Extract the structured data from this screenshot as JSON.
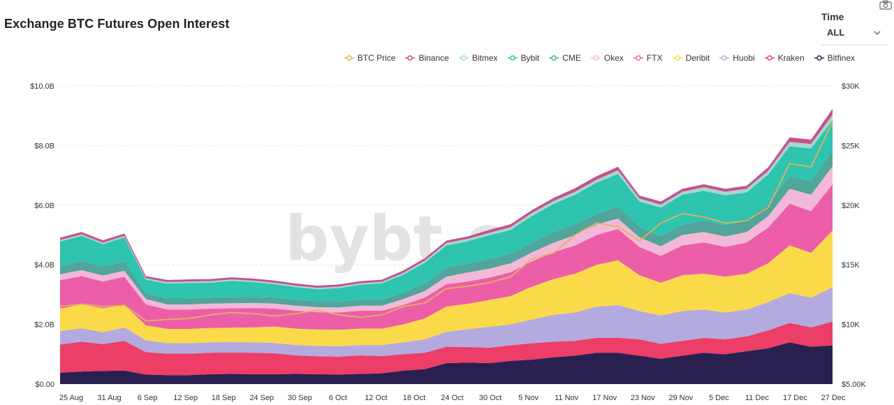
{
  "header": {
    "title": "Exchange BTC Futures Open Interest"
  },
  "time_selector": {
    "label": "Time",
    "value": "ALL"
  },
  "icons": {
    "dropdown": "chevron-down-icon",
    "screenshot": "camera-icon"
  },
  "watermark": "bybt.com",
  "chart_data": {
    "type": "area",
    "stacked": true,
    "title": "Exchange BTC Futures Open Interest",
    "x_tick_labels": [
      "25 Aug",
      "31 Aug",
      "6 Sep",
      "12 Sep",
      "18 Sep",
      "24 Sep",
      "30 Sep",
      "6 Oct",
      "12 Oct",
      "18 Oct",
      "24 Oct",
      "30 Oct",
      "5 Nov",
      "11 Nov",
      "17 Nov",
      "23 Nov",
      "29 Nov",
      "5 Dec",
      "11 Dec",
      "17 Dec",
      "27 Dec"
    ],
    "y_left": {
      "ticks": [
        "$0.00",
        "$2.0B",
        "$4.0B",
        "$6.0B",
        "$8.0B",
        "$10.0B"
      ],
      "range": [
        0,
        10
      ]
    },
    "y_right": {
      "ticks": [
        "$5.00K",
        "$10K",
        "$15K",
        "$20K",
        "$25K",
        "$30K"
      ],
      "range": [
        5000,
        30000
      ]
    },
    "grid": "horizontal-dashed",
    "legend_position": "top-right",
    "legend": [
      "BTC Price",
      "Binance",
      "Bitmex",
      "Bybit",
      "CME",
      "Okex",
      "FTX",
      "Deribit",
      "Huobi",
      "Kraken",
      "Bitfinex"
    ],
    "series": [
      {
        "name": "Bitfinex",
        "color": "#2a2050",
        "values": [
          0.38,
          0.42,
          0.44,
          0.45,
          0.32,
          0.3,
          0.3,
          0.33,
          0.34,
          0.33,
          0.33,
          0.34,
          0.33,
          0.32,
          0.34,
          0.36,
          0.45,
          0.5,
          0.7,
          0.72,
          0.7,
          0.78,
          0.82,
          0.9,
          0.95,
          1.05,
          1.05,
          0.95,
          0.85,
          0.95,
          1.05,
          1.0,
          1.1,
          1.2,
          1.4,
          1.25,
          1.3
        ]
      },
      {
        "name": "Kraken",
        "color": "#ec3e66",
        "values": [
          0.95,
          1.0,
          0.9,
          1.0,
          0.75,
          0.72,
          0.72,
          0.72,
          0.72,
          0.72,
          0.7,
          0.62,
          0.6,
          0.6,
          0.62,
          0.58,
          0.55,
          0.55,
          0.55,
          0.52,
          0.52,
          0.52,
          0.55,
          0.52,
          0.5,
          0.5,
          0.5,
          0.55,
          0.5,
          0.5,
          0.5,
          0.5,
          0.5,
          0.6,
          0.65,
          0.65,
          0.8
        ]
      },
      {
        "name": "Huobi",
        "color": "#b3aadf",
        "values": [
          0.45,
          0.45,
          0.4,
          0.45,
          0.4,
          0.35,
          0.35,
          0.35,
          0.35,
          0.35,
          0.35,
          0.35,
          0.35,
          0.35,
          0.35,
          0.37,
          0.4,
          0.45,
          0.5,
          0.6,
          0.7,
          0.7,
          0.8,
          0.9,
          0.95,
          1.05,
          1.1,
          0.95,
          0.95,
          1.0,
          0.95,
          0.9,
          0.9,
          0.95,
          1.0,
          1.0,
          1.15
        ]
      },
      {
        "name": "Deribit",
        "color": "#fbda4a",
        "values": [
          0.75,
          0.8,
          0.8,
          0.75,
          0.5,
          0.48,
          0.48,
          0.48,
          0.48,
          0.5,
          0.55,
          0.55,
          0.55,
          0.55,
          0.55,
          0.55,
          0.6,
          0.7,
          0.85,
          0.85,
          0.9,
          0.95,
          1.1,
          1.2,
          1.3,
          1.4,
          1.5,
          1.2,
          1.1,
          1.2,
          1.2,
          1.2,
          1.2,
          1.3,
          1.6,
          1.5,
          1.9
        ]
      },
      {
        "name": "FTX",
        "color": "#ec5fa8",
        "values": [
          0.95,
          0.95,
          0.9,
          0.95,
          0.7,
          0.65,
          0.65,
          0.65,
          0.65,
          0.65,
          0.6,
          0.6,
          0.58,
          0.58,
          0.6,
          0.6,
          0.65,
          0.7,
          0.75,
          0.75,
          0.75,
          0.8,
          0.85,
          0.9,
          0.95,
          1.0,
          1.05,
          0.95,
          0.9,
          1.0,
          1.05,
          1.0,
          1.05,
          1.2,
          1.4,
          1.4,
          1.55
        ]
      },
      {
        "name": "Okex",
        "color": "#f3b8d8",
        "values": [
          0.2,
          0.2,
          0.2,
          0.2,
          0.18,
          0.17,
          0.17,
          0.17,
          0.17,
          0.17,
          0.17,
          0.17,
          0.17,
          0.17,
          0.17,
          0.17,
          0.2,
          0.22,
          0.25,
          0.3,
          0.3,
          0.3,
          0.3,
          0.32,
          0.35,
          0.35,
          0.35,
          0.32,
          0.32,
          0.35,
          0.35,
          0.35,
          0.35,
          0.38,
          0.5,
          0.55,
          0.6
        ]
      },
      {
        "name": "CME",
        "color": "#51a59a",
        "values": [
          0.28,
          0.3,
          0.3,
          0.3,
          0.2,
          0.2,
          0.2,
          0.2,
          0.2,
          0.2,
          0.2,
          0.2,
          0.2,
          0.2,
          0.2,
          0.2,
          0.22,
          0.25,
          0.3,
          0.3,
          0.32,
          0.32,
          0.32,
          0.35,
          0.35,
          0.35,
          0.4,
          0.35,
          0.35,
          0.35,
          0.38,
          0.38,
          0.38,
          0.4,
          0.42,
          0.45,
          0.5
        ]
      },
      {
        "name": "Bybit",
        "color": "#2ec4ae",
        "values": [
          0.82,
          0.85,
          0.75,
          0.82,
          0.45,
          0.5,
          0.52,
          0.5,
          0.55,
          0.5,
          0.45,
          0.42,
          0.4,
          0.45,
          0.5,
          0.55,
          0.6,
          0.7,
          0.75,
          0.75,
          0.8,
          0.8,
          0.9,
          0.95,
          1.0,
          1.05,
          1.1,
          0.85,
          0.95,
          1.0,
          1.0,
          1.0,
          0.95,
          1.0,
          1.0,
          1.1,
          1.05
        ]
      },
      {
        "name": "Bitmex",
        "color": "#a4d7cf",
        "values": [
          0.05,
          0.05,
          0.05,
          0.05,
          0.05,
          0.05,
          0.05,
          0.05,
          0.05,
          0.05,
          0.05,
          0.05,
          0.05,
          0.05,
          0.05,
          0.05,
          0.06,
          0.07,
          0.08,
          0.08,
          0.08,
          0.09,
          0.1,
          0.1,
          0.1,
          0.1,
          0.12,
          0.1,
          0.1,
          0.1,
          0.12,
          0.12,
          0.12,
          0.12,
          0.15,
          0.15,
          0.18
        ]
      },
      {
        "name": "Binance",
        "color": "#c6528d",
        "values": [
          0.08,
          0.08,
          0.08,
          0.08,
          0.07,
          0.07,
          0.07,
          0.07,
          0.07,
          0.07,
          0.07,
          0.07,
          0.07,
          0.07,
          0.07,
          0.07,
          0.08,
          0.08,
          0.08,
          0.08,
          0.1,
          0.1,
          0.1,
          0.1,
          0.12,
          0.12,
          0.12,
          0.1,
          0.1,
          0.1,
          0.1,
          0.1,
          0.1,
          0.12,
          0.15,
          0.15,
          0.2
        ]
      }
    ],
    "btc_price": {
      "name": "BTC Price",
      "color": "#e2b35a",
      "values": [
        11500,
        11700,
        11500,
        11600,
        10300,
        10400,
        10500,
        10800,
        11000,
        10900,
        10700,
        10900,
        11200,
        10800,
        10600,
        10800,
        11500,
        11800,
        13000,
        13200,
        13500,
        14000,
        15500,
        16000,
        17500,
        18500,
        18200,
        17000,
        18500,
        19300,
        19000,
        18500,
        18700,
        19800,
        23500,
        23200,
        27000
      ]
    }
  }
}
